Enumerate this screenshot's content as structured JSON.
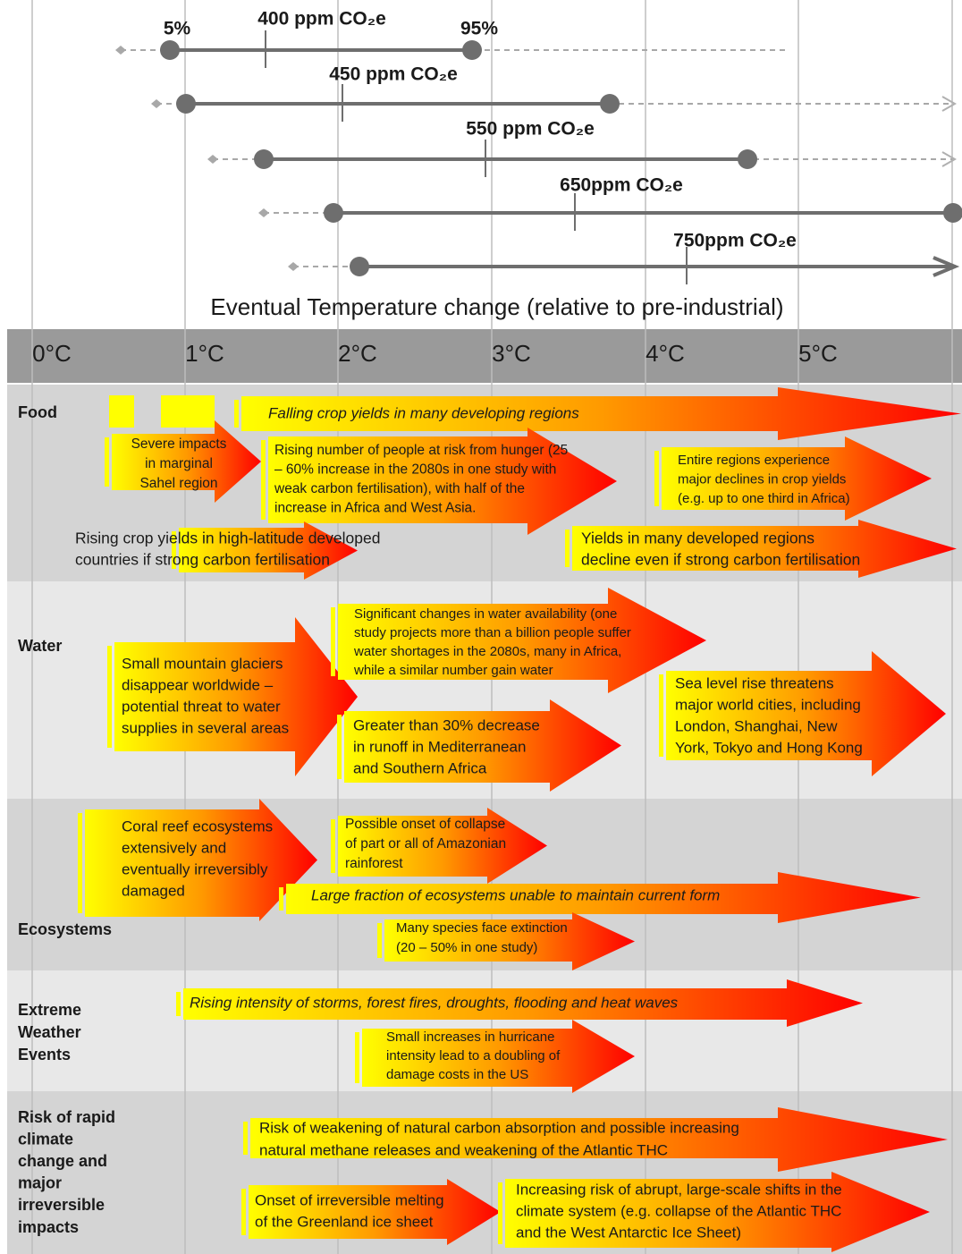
{
  "stabilization": [
    {
      "label": "400 ppm CO₂e",
      "low_label": "5%",
      "high_label": "95%"
    },
    {
      "label": "450 ppm CO₂e"
    },
    {
      "label": "550 ppm CO₂e"
    },
    {
      "label": "650ppm CO₂e"
    },
    {
      "label": "750ppm CO₂e"
    }
  ],
  "axis_caption": "Eventual Temperature change (relative to pre-industrial)",
  "temperatures": [
    "0°C",
    "1°C",
    "2°C",
    "3°C",
    "4°C",
    "5°C"
  ],
  "sections": [
    {
      "name": [
        "Food"
      ],
      "impacts": [
        {
          "text": [
            "Falling crop yields in many developing regions"
          ]
        },
        {
          "text": [
            "Severe impacts",
            "in marginal",
            "Sahel region"
          ]
        },
        {
          "text": [
            "Rising number of people at risk from hunger (25",
            "– 60% increase in the 2080s in one study with",
            "weak carbon fertilisation), with half of the",
            "increase in Africa and West Asia."
          ]
        },
        {
          "text": [
            "Entire regions experience",
            "major declines in crop yields",
            "(e.g. up to one third in Africa)"
          ]
        },
        {
          "text": [
            "Rising crop yields in high-latitude developed",
            "countries if strong carbon fertilisation"
          ]
        },
        {
          "text": [
            "Yields in many developed regions",
            "decline even if strong carbon fertilisation"
          ]
        }
      ]
    },
    {
      "name": [
        "Water"
      ],
      "impacts": [
        {
          "text": [
            "Small mountain glaciers",
            "disappear worldwide –",
            "potential threat to water",
            "supplies in several areas"
          ]
        },
        {
          "text": [
            "Significant changes in water availability (one",
            "study projects more than a billion people suffer",
            "water shortages in the 2080s, many in Africa,",
            "while a similar number gain water"
          ]
        },
        {
          "text": [
            "Greater than 30% decrease",
            "in runoff in Mediterranean",
            "and Southern Africa"
          ]
        },
        {
          "text": [
            "Sea level rise threatens",
            "major world cities, including",
            "London, Shanghai, New",
            "York, Tokyo and Hong Kong"
          ]
        }
      ]
    },
    {
      "name": [
        "Ecosystems"
      ],
      "impacts": [
        {
          "text": [
            "Coral reef ecosystems",
            "extensively and",
            "eventually irreversibly",
            "damaged"
          ]
        },
        {
          "text": [
            "Possible onset of collapse",
            "of part or all of Amazonian",
            "rainforest"
          ]
        },
        {
          "text": [
            "Large fraction of ecosystems unable to maintain current form"
          ]
        },
        {
          "text": [
            "Many species face extinction",
            "(20 – 50% in one study)"
          ]
        }
      ]
    },
    {
      "name": [
        "Extreme",
        "Weather",
        "Events"
      ],
      "impacts": [
        {
          "text": [
            "Rising intensity of storms, forest fires, droughts, flooding and heat waves"
          ]
        },
        {
          "text": [
            "Small increases in hurricane",
            "intensity lead to a doubling of",
            "damage costs in the US"
          ]
        }
      ]
    },
    {
      "name": [
        "Risk of rapid",
        "climate",
        "change and",
        "major",
        "irreversible",
        "impacts"
      ],
      "impacts": [
        {
          "text": [
            "Risk of weakening of natural carbon absorption and possible increasing",
            "natural methane releases and weakening of the Atlantic THC"
          ]
        },
        {
          "text": [
            "Onset of irreversible melting",
            "of the Greenland ice sheet"
          ]
        },
        {
          "text": [
            "Increasing risk of abrupt, large-scale shifts in the",
            "climate system (e.g. collapse of the Atlantic THC",
            "and the West Antarctic Ice Sheet)"
          ]
        }
      ]
    }
  ]
}
